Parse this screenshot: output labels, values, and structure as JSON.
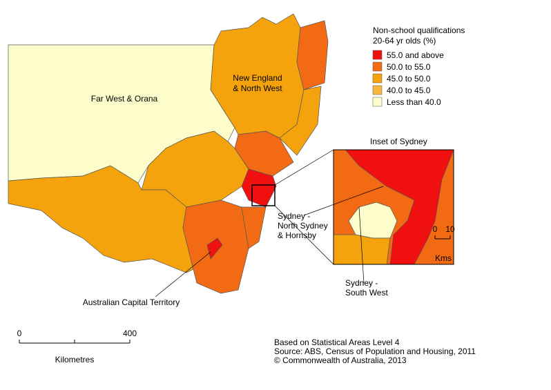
{
  "legend": {
    "title": [
      "Non-school qualifications",
      "20-64 yr olds (%)"
    ],
    "items": [
      {
        "label": "55.0 and above",
        "color": "#f01010"
      },
      {
        "label": "50.0 to 55.0",
        "color": "#f26a14"
      },
      {
        "label": "45.0 to 50.0",
        "color": "#f5a30c"
      },
      {
        "label": "40.0 to 45.0",
        "color": "#f7b63e"
      },
      {
        "label": "Less than 40.0",
        "color": "#fdfdcc"
      }
    ]
  },
  "regions": {
    "far_west": [
      "Far West & Orana"
    ],
    "new_england": [
      "New England",
      "& North West"
    ],
    "act": [
      "Australian Capital Territory"
    ],
    "inset_title": [
      "Inset of Sydney"
    ],
    "north_sydney": [
      "Sydney -",
      "North Sydney",
      "& Hornsby"
    ],
    "south_west": [
      "Sydney -",
      "South West"
    ]
  },
  "scale": {
    "ticks": [
      0,
      400
    ],
    "unit": "Kilometres"
  },
  "inset_scale": {
    "ticks": [
      0,
      10
    ],
    "unit": "Kms"
  },
  "source": [
    "Based on Statistical Areas Level 4",
    "Source: ABS, Census of Population and Housing, 2011",
    "© Commonwealth of Australia, 2013"
  ]
}
